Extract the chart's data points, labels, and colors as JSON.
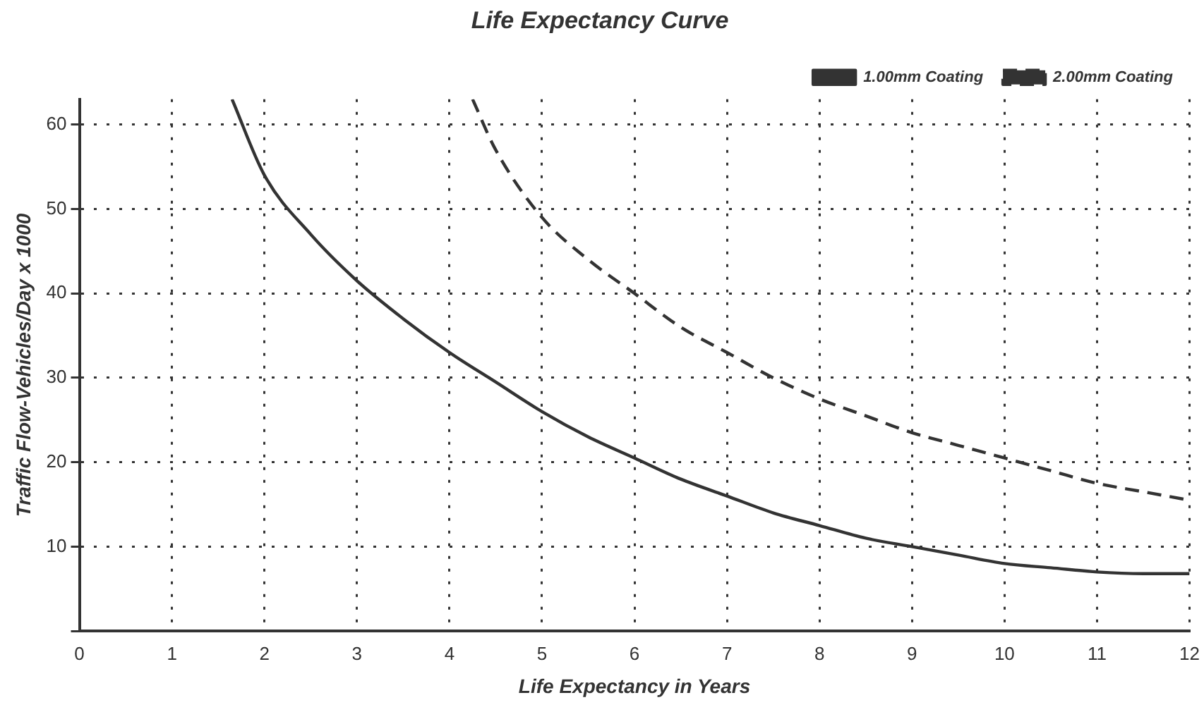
{
  "chart_data": {
    "type": "line",
    "title": "Life Expectancy Curve",
    "xlabel": "Life Expectancy in Years",
    "ylabel": "Traffic Flow-Vehicles/Day x 1000",
    "xlim": [
      0,
      12
    ],
    "xticks": [
      0,
      1,
      2,
      3,
      4,
      5,
      6,
      7,
      8,
      9,
      10,
      11,
      12
    ],
    "ylim": [
      0,
      63
    ],
    "yticks": [
      {
        "value": 0,
        "label": null
      },
      10,
      20,
      30,
      40,
      50,
      60
    ],
    "grid": true,
    "legend": "top right",
    "marker": "none",
    "series": [
      {
        "name": "1.00mm Coating",
        "color": "#333333",
        "line_style": "solid",
        "x": [
          1.65,
          2,
          2.5,
          3,
          3.5,
          4,
          4.5,
          5,
          5.5,
          6,
          6.5,
          7,
          7.5,
          8,
          8.5,
          9,
          9.5,
          10,
          10.5,
          11,
          11.5,
          12
        ],
        "values": [
          63,
          54,
          47,
          41.5,
          37,
          33,
          29.5,
          26,
          23,
          20.5,
          18,
          16,
          14,
          12.5,
          11,
          10,
          9,
          8,
          7.5,
          7,
          6.8,
          6.8
        ]
      },
      {
        "name": "2.00mm Coating",
        "color": "#333333",
        "line_style": "dashed",
        "x": [
          4.25,
          4.5,
          5,
          5.5,
          6,
          6.5,
          7,
          7.5,
          8,
          8.5,
          9,
          9.5,
          10,
          10.5,
          11,
          11.5,
          12
        ],
        "values": [
          63,
          57,
          49,
          44,
          40,
          36,
          33,
          30,
          27.5,
          25.5,
          23.5,
          22,
          20.5,
          19,
          17.5,
          16.5,
          15.5
        ]
      }
    ]
  }
}
